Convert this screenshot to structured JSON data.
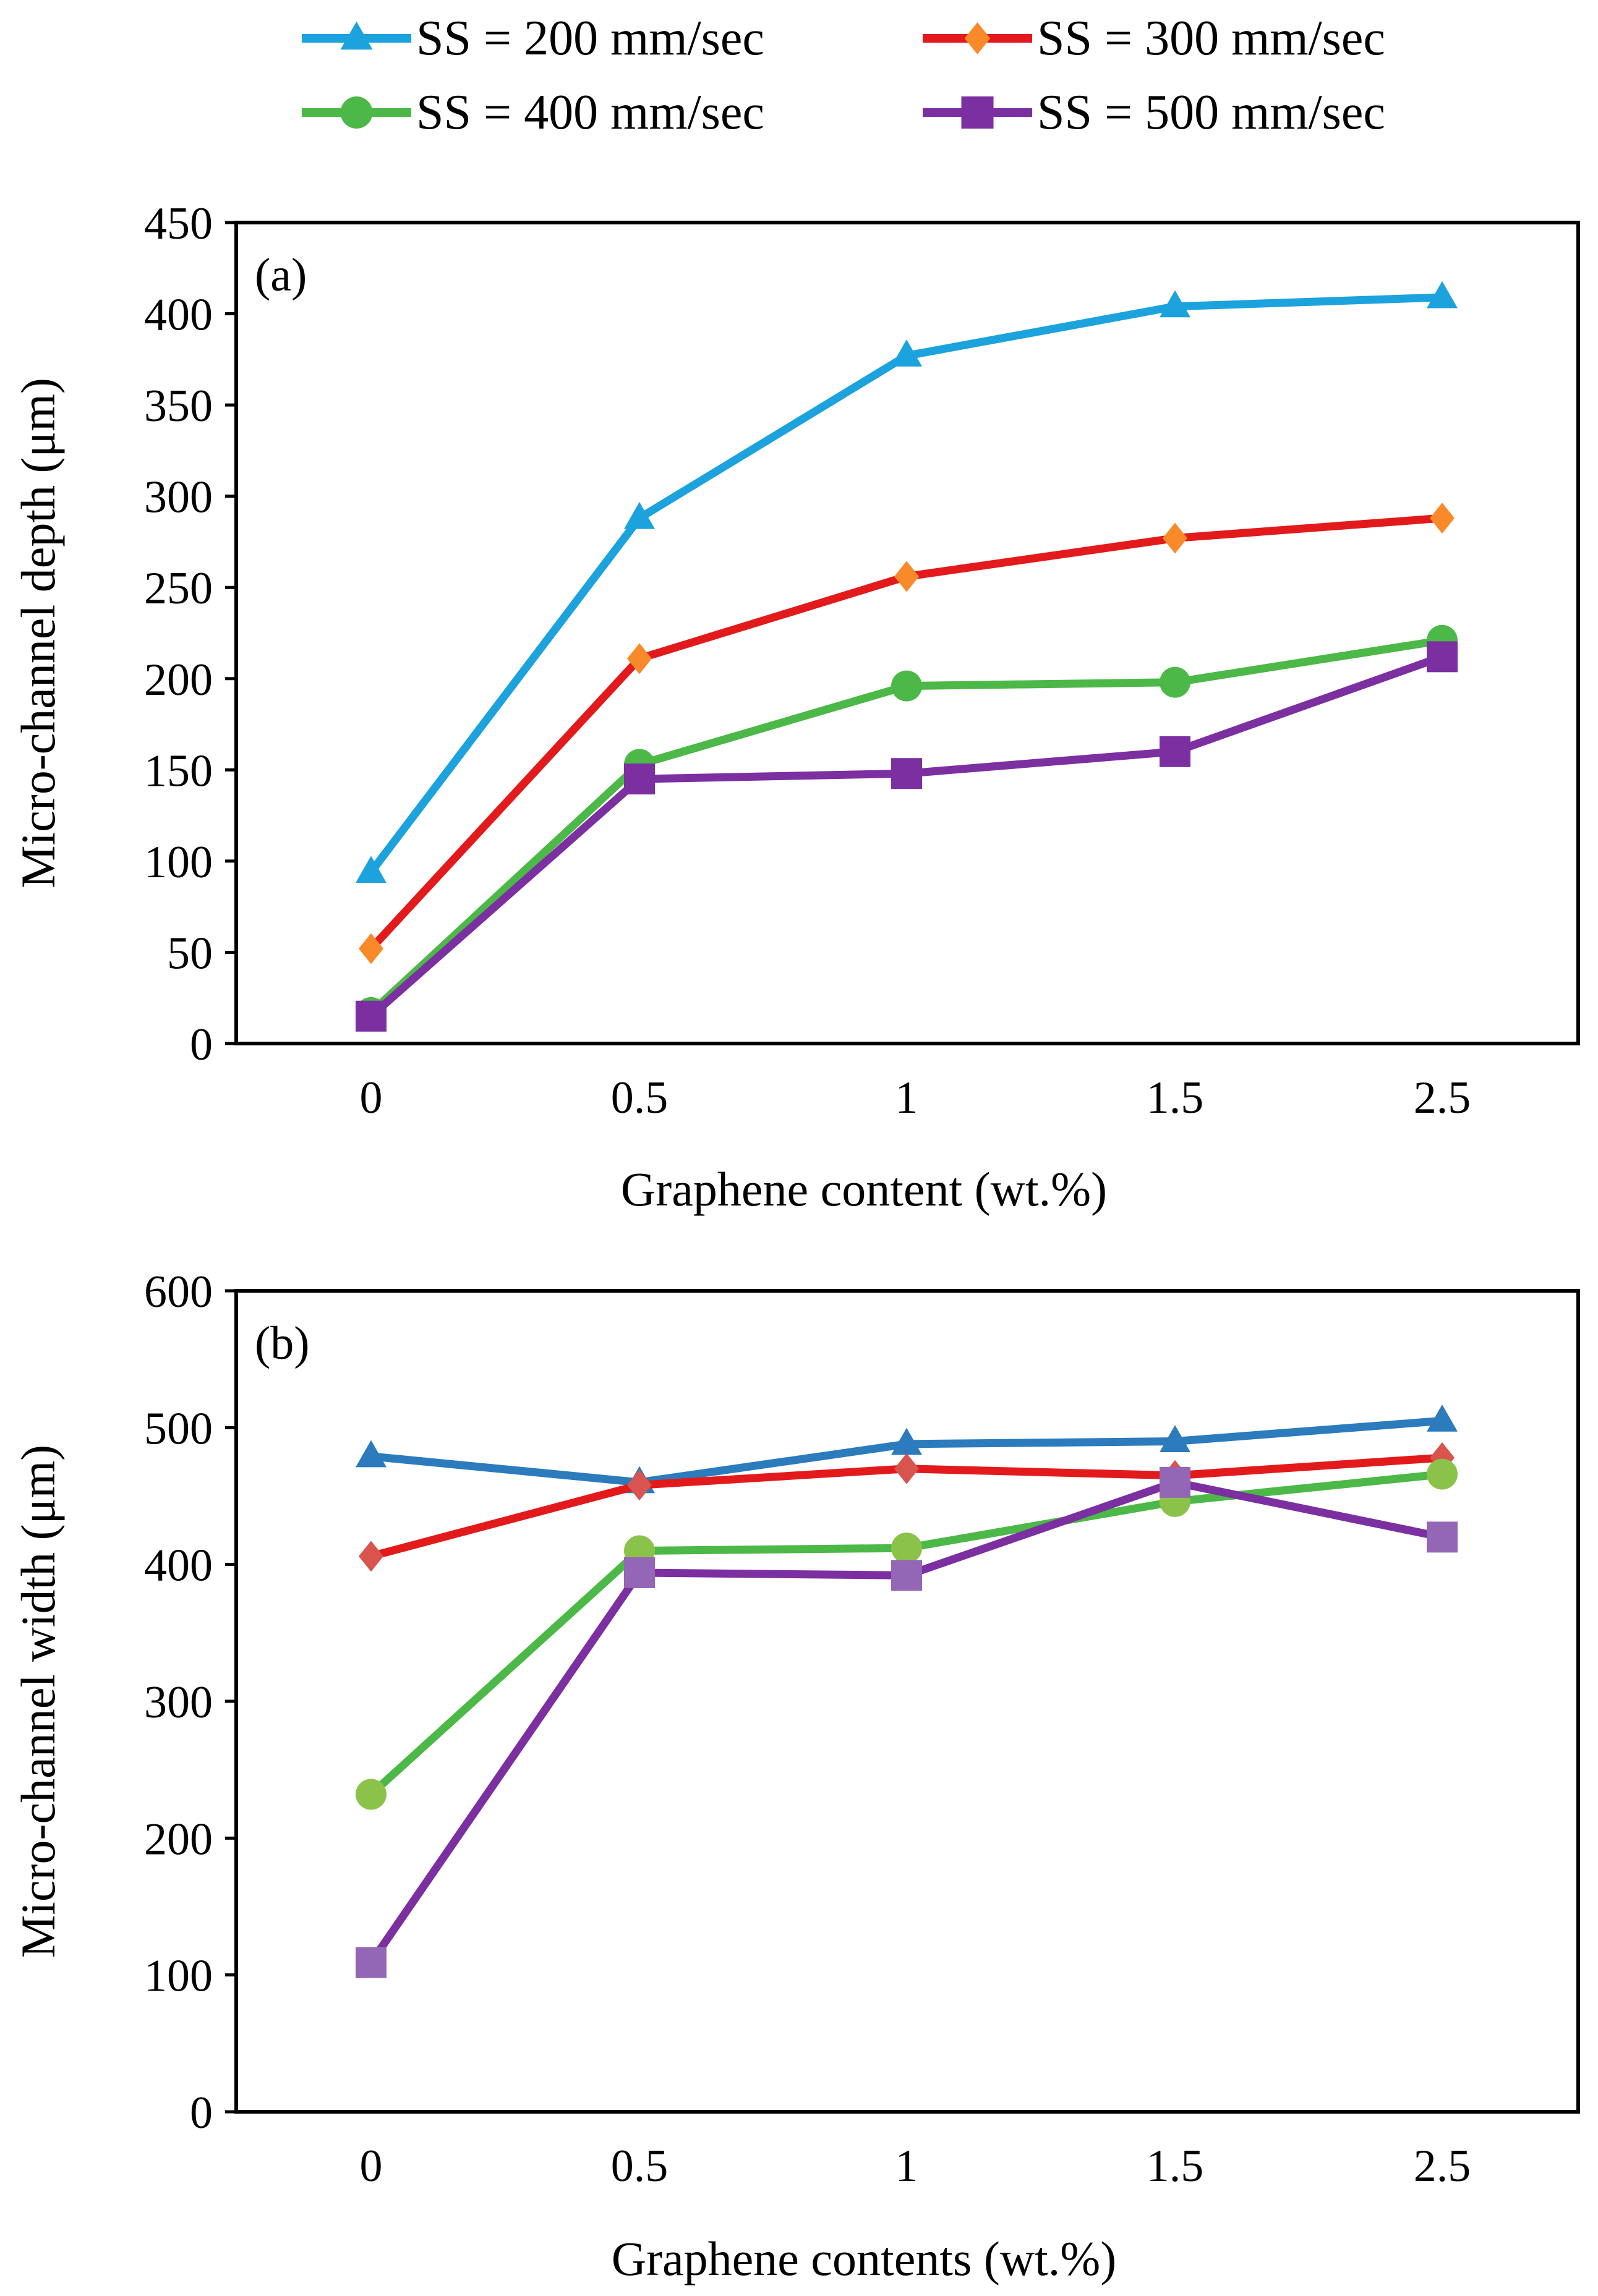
{
  "legend": [
    {
      "label": "SS = 200 mm/sec"
    },
    {
      "label": "SS = 300 mm/sec"
    },
    {
      "label": "SS = 400 mm/sec"
    },
    {
      "label": "SS = 500 mm/sec"
    }
  ],
  "chart_data": [
    {
      "type": "line",
      "panel_label": "(a)",
      "xlabel": "Graphene content (wt.%)",
      "ylabel": "Micro-channel depth (μm)",
      "categories": [
        "0",
        "0.5",
        "1",
        "1.5",
        "2.5"
      ],
      "ylim": [
        0,
        450
      ],
      "yticks": [
        0,
        50,
        100,
        150,
        200,
        250,
        300,
        350,
        400,
        450
      ],
      "series": [
        {
          "name": "SS = 200 mm/sec",
          "marker": "triangle",
          "line_color": "#1ca2dd",
          "marker_color": "#1ca2dd",
          "values": [
            94,
            288,
            377,
            404,
            409
          ]
        },
        {
          "name": "SS = 300 mm/sec",
          "marker": "diamond",
          "line_color": "#e31a1c",
          "marker_color": "#f98a2a",
          "values": [
            52,
            211,
            256,
            277,
            288
          ]
        },
        {
          "name": "SS = 400 mm/sec",
          "marker": "circle",
          "line_color": "#4cb847",
          "marker_color": "#4cb847",
          "values": [
            17,
            153,
            196,
            198,
            221
          ]
        },
        {
          "name": "SS = 500 mm/sec",
          "marker": "square",
          "line_color": "#7b2fa0",
          "marker_color": "#7b2fa0",
          "values": [
            15,
            145,
            148,
            160,
            212
          ]
        }
      ]
    },
    {
      "type": "line",
      "panel_label": "(b)",
      "xlabel": "Graphene contents (wt.%)",
      "ylabel": "Micro-channel  width (μm)",
      "categories": [
        "0",
        "0.5",
        "1",
        "1.5",
        "2.5"
      ],
      "ylim": [
        0,
        600
      ],
      "yticks": [
        0,
        100,
        200,
        300,
        400,
        500,
        600
      ],
      "series": [
        {
          "name": "SS = 200 mm/sec",
          "marker": "triangle",
          "line_color": "#2b7bbd",
          "marker_color": "#2b7bbd",
          "values": [
            479,
            460,
            488,
            490,
            505
          ]
        },
        {
          "name": "SS = 300 mm/sec",
          "marker": "diamond",
          "line_color": "#e31a1c",
          "marker_color": "#d9534f",
          "values": [
            406,
            458,
            470,
            465,
            478
          ]
        },
        {
          "name": "SS = 400 mm/sec",
          "marker": "circle",
          "line_color": "#4cb847",
          "marker_color": "#8bc34a",
          "values": [
            232,
            410,
            412,
            446,
            466
          ]
        },
        {
          "name": "SS = 500 mm/sec",
          "marker": "square",
          "line_color": "#7b2fa0",
          "marker_color": "#9466b6",
          "values": [
            109,
            394,
            392,
            460,
            420
          ]
        }
      ]
    }
  ]
}
